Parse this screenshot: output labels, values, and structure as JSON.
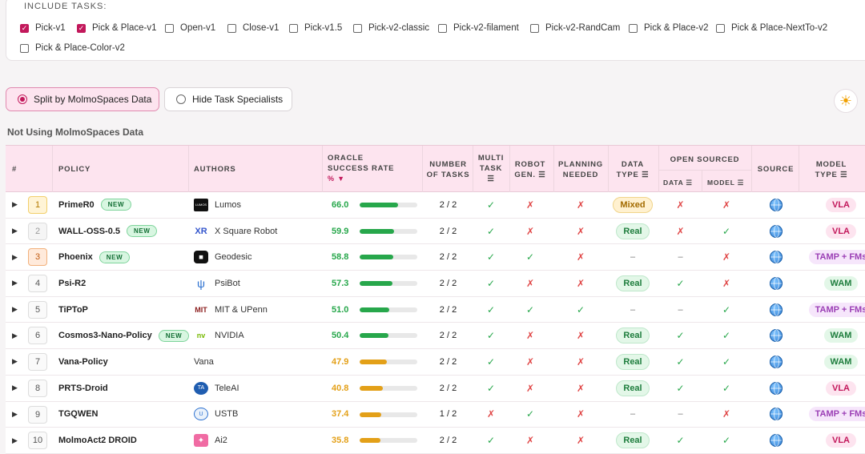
{
  "tasks": {
    "title": "INCLUDE TASKS:",
    "items": [
      {
        "label": "Pick-v1",
        "checked": true
      },
      {
        "label": "Pick & Place-v1",
        "checked": true
      },
      {
        "label": "Open-v1",
        "checked": false
      },
      {
        "label": "Close-v1",
        "checked": false
      },
      {
        "label": "Pick-v1.5",
        "checked": false
      },
      {
        "label": "Pick-v2-classic",
        "checked": false
      },
      {
        "label": "Pick-v2-filament",
        "checked": false
      },
      {
        "label": "Pick-v2-RandCam",
        "checked": false
      },
      {
        "label": "Pick & Place-v2",
        "checked": false
      },
      {
        "label": "Pick & Place-NextTo-v2",
        "checked": false
      },
      {
        "label": "Pick & Place-Color-v2",
        "checked": false
      }
    ]
  },
  "controls": {
    "split_label": "Split by MolmoSpaces Data",
    "hide_label": "Hide Task Specialists",
    "theme_icon": "sun-icon"
  },
  "section_title": "Not Using MolmoSpaces Data",
  "headers": {
    "rank": "#",
    "policy": "POLICY",
    "authors": "AUTHORS",
    "oracle": "ORACLE",
    "success": "SUCCESS RATE",
    "sort": "% ▼",
    "number": "NUMBER",
    "of_tasks": "OF TASKS",
    "multi": "MULTI",
    "task": "TASK",
    "robot": "ROBOT",
    "gen": "GEN.",
    "planning": "PLANNING",
    "needed": "NEEDED",
    "data": "DATA",
    "type": "TYPE",
    "open_sourced": "OPEN SOURCED",
    "os_data": "DATA",
    "os_model": "MODEL",
    "source": "SOURCE",
    "model": "MODEL",
    "model_type": "TYPE",
    "filter_icon": "☰"
  },
  "colors": {
    "accent": "#c2185b",
    "green": "#27a74b",
    "orange": "#e3a018",
    "red": "#e04545"
  },
  "rows": [
    {
      "rank": "1",
      "policy": "PrimeR0",
      "new": "NEW",
      "author": "Lumos",
      "logo": "LUMOS",
      "score": "66.0",
      "rate": 66.0,
      "tasks": "2 / 2",
      "multi": "✓",
      "robot": "✗",
      "planning": "✗",
      "data_type": "Mixed",
      "os_data": "✗",
      "os_model": "✗",
      "model_type": "VLA"
    },
    {
      "rank": "2",
      "policy": "WALL-OSS-0.5",
      "new": "NEW",
      "author": "X Square Robot",
      "logo": "XR",
      "score": "59.9",
      "rate": 59.9,
      "tasks": "2 / 2",
      "multi": "✓",
      "robot": "✗",
      "planning": "✗",
      "data_type": "Real",
      "os_data": "✗",
      "os_model": "✓",
      "model_type": "VLA"
    },
    {
      "rank": "3",
      "policy": "Phoenix",
      "new": "NEW",
      "author": "Geodesic",
      "logo": "◼",
      "score": "58.8",
      "rate": 58.8,
      "tasks": "2 / 2",
      "multi": "✓",
      "robot": "✓",
      "planning": "✗",
      "data_type": "–",
      "os_data": "–",
      "os_model": "✗",
      "model_type": "TAMP + FMs"
    },
    {
      "rank": "4",
      "policy": "Psi-R2",
      "new": "",
      "author": "PsiBot",
      "logo": "ψ",
      "score": "57.3",
      "rate": 57.3,
      "tasks": "2 / 2",
      "multi": "✓",
      "robot": "✗",
      "planning": "✗",
      "data_type": "Real",
      "os_data": "✓",
      "os_model": "✗",
      "model_type": "WAM"
    },
    {
      "rank": "5",
      "policy": "TiPToP",
      "new": "",
      "author": "MIT & UPenn",
      "logo": "MIT",
      "score": "51.0",
      "rate": 51.0,
      "tasks": "2 / 2",
      "multi": "✓",
      "robot": "✓",
      "planning": "✓",
      "data_type": "–",
      "os_data": "–",
      "os_model": "✓",
      "model_type": "TAMP + FMs"
    },
    {
      "rank": "6",
      "policy": "Cosmos3-Nano-Policy",
      "new": "NEW",
      "author": "NVIDIA",
      "logo": "nv",
      "score": "50.4",
      "rate": 50.4,
      "tasks": "2 / 2",
      "multi": "✓",
      "robot": "✗",
      "planning": "✗",
      "data_type": "Real",
      "os_data": "✓",
      "os_model": "✓",
      "model_type": "WAM"
    },
    {
      "rank": "7",
      "policy": "Vana-Policy",
      "new": "",
      "author": "Vana",
      "logo": "",
      "score": "47.9",
      "rate": 47.9,
      "tasks": "2 / 2",
      "multi": "✓",
      "robot": "✗",
      "planning": "✗",
      "data_type": "Real",
      "os_data": "✓",
      "os_model": "✓",
      "model_type": "WAM"
    },
    {
      "rank": "8",
      "policy": "PRTS-Droid",
      "new": "",
      "author": "TeleAI",
      "logo": "TA",
      "score": "40.8",
      "rate": 40.8,
      "tasks": "2 / 2",
      "multi": "✓",
      "robot": "✗",
      "planning": "✗",
      "data_type": "Real",
      "os_data": "✓",
      "os_model": "✓",
      "model_type": "VLA"
    },
    {
      "rank": "9",
      "policy": "TGQWEN",
      "new": "",
      "author": "USTB",
      "logo": "U",
      "score": "37.4",
      "rate": 37.4,
      "tasks": "1 / 2",
      "multi": "✗",
      "robot": "✓",
      "planning": "✗",
      "data_type": "–",
      "os_data": "–",
      "os_model": "✗",
      "model_type": "TAMP + FMs"
    },
    {
      "rank": "10",
      "policy": "MolmoAct2 DROID",
      "new": "",
      "author": "Ai2",
      "logo": "✦",
      "score": "35.8",
      "rate": 35.8,
      "tasks": "2 / 2",
      "multi": "✓",
      "robot": "✗",
      "planning": "✗",
      "data_type": "Real",
      "os_data": "✓",
      "os_model": "✓",
      "model_type": "VLA"
    }
  ]
}
